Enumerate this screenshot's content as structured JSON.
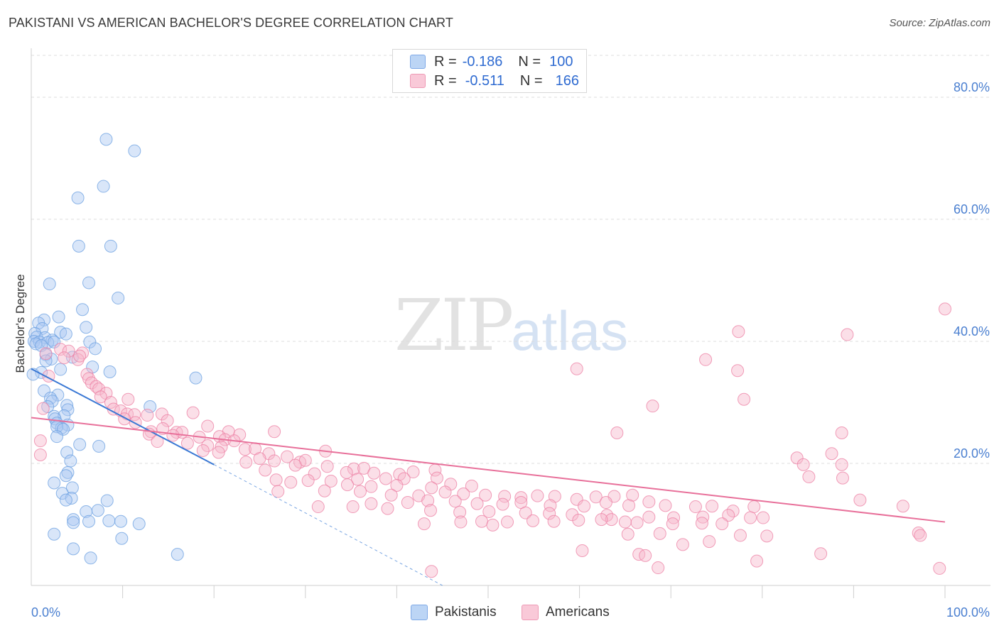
{
  "title": "PAKISTANI VS AMERICAN BACHELOR'S DEGREE CORRELATION CHART",
  "source": "Source: ZipAtlas.com",
  "watermark": {
    "zip": "ZIP",
    "atlas": "atlas"
  },
  "legend": [
    {
      "r_label": "R =",
      "r": "-0.186",
      "n_label": "N =",
      "n": "100",
      "color": "#aac8f2"
    },
    {
      "r_label": "R =",
      "r": "-0.511",
      "n_label": "N =",
      "n": "166",
      "color": "#f7b8cc"
    }
  ],
  "bottom_legend": [
    {
      "label": "Pakistanis",
      "color": "#aac8f2"
    },
    {
      "label": "Americans",
      "color": "#f7b8cc"
    }
  ],
  "chart_data": {
    "type": "scatter",
    "title": "PAKISTANI VS AMERICAN BACHELOR'S DEGREE CORRELATION CHART",
    "xlabel": "",
    "ylabel": "Bachelor's Degree",
    "xlim": [
      0,
      100
    ],
    "ylim": [
      0,
      85
    ],
    "x_tick_labels": [
      "0.0%",
      "100.0%"
    ],
    "y_ticks": [
      20,
      40,
      60,
      80
    ],
    "y_tick_labels": [
      "20.0%",
      "40.0%",
      "60.0%",
      "80.0%"
    ],
    "grid": true,
    "series": [
      {
        "name": "Pakistanis",
        "color": "#6a9fe0",
        "fill": "#aac8f2",
        "trend": {
          "x": [
            0,
            20
          ],
          "y": [
            35.5,
            19.8
          ],
          "dashed_to": [
            45,
            0
          ]
        },
        "points": [
          [
            8.2,
            73.1
          ],
          [
            11.3,
            71.2
          ],
          [
            7.9,
            65.4
          ],
          [
            5.1,
            63.5
          ],
          [
            5.2,
            55.6
          ],
          [
            8.7,
            55.6
          ],
          [
            2,
            49.4
          ],
          [
            6.3,
            49.6
          ],
          [
            9.5,
            47.1
          ],
          [
            5.6,
            45.2
          ],
          [
            3,
            44
          ],
          [
            1.4,
            43.5
          ],
          [
            0.8,
            43
          ],
          [
            6,
            42.3
          ],
          [
            1.2,
            42.1
          ],
          [
            3.2,
            41.5
          ],
          [
            0.4,
            41.3
          ],
          [
            3.8,
            41.2
          ],
          [
            0.6,
            40.7
          ],
          [
            1.5,
            40.6
          ],
          [
            2.3,
            40.2
          ],
          [
            0.3,
            40
          ],
          [
            0.9,
            39.9
          ],
          [
            1.8,
            39.8
          ],
          [
            2.5,
            39.9
          ],
          [
            6.4,
            39.9
          ],
          [
            0.5,
            39.6
          ],
          [
            1.1,
            39.3
          ],
          [
            7,
            38.8
          ],
          [
            1.6,
            37.8
          ],
          [
            4.5,
            37.4
          ],
          [
            2.2,
            37.1
          ],
          [
            1.6,
            36.8
          ],
          [
            6.7,
            35.8
          ],
          [
            3.2,
            35.4
          ],
          [
            1.1,
            34.9
          ],
          [
            8.6,
            35
          ],
          [
            0.2,
            34.6
          ],
          [
            18,
            34
          ],
          [
            1.4,
            31.9
          ],
          [
            2.9,
            31.2
          ],
          [
            2.1,
            30.7
          ],
          [
            2.3,
            30.2
          ],
          [
            3.9,
            29.5
          ],
          [
            13,
            29.3
          ],
          [
            1.8,
            29.3
          ],
          [
            4,
            28.8
          ],
          [
            2.5,
            27.7
          ],
          [
            3.6,
            27.8
          ],
          [
            2.6,
            27.3
          ],
          [
            2.8,
            26.6
          ],
          [
            4,
            26.3
          ],
          [
            3.3,
            25.8
          ],
          [
            2.8,
            26
          ],
          [
            3.5,
            25.6
          ],
          [
            2.8,
            24.4
          ],
          [
            5.3,
            23.1
          ],
          [
            7.4,
            22.8
          ],
          [
            3.9,
            21.8
          ],
          [
            4.3,
            20.4
          ],
          [
            4,
            18.5
          ],
          [
            3.8,
            18
          ],
          [
            2.5,
            16.8
          ],
          [
            4.5,
            16
          ],
          [
            3.4,
            15.1
          ],
          [
            4.4,
            14.3
          ],
          [
            3.8,
            14
          ],
          [
            8.3,
            13.9
          ],
          [
            6,
            12.1
          ],
          [
            7.3,
            12.3
          ],
          [
            4.6,
            10.8
          ],
          [
            6.3,
            10.5
          ],
          [
            8.5,
            10.6
          ],
          [
            9.8,
            10.5
          ],
          [
            11.8,
            10.1
          ],
          [
            4.6,
            10.3
          ],
          [
            2.5,
            8.4
          ],
          [
            9.9,
            7.7
          ],
          [
            4.6,
            6
          ],
          [
            16,
            5.1
          ],
          [
            6.5,
            4.5
          ]
        ]
      },
      {
        "name": "Americans",
        "color": "#ec7fa3",
        "fill": "#f7b8cc",
        "trend": {
          "x": [
            0,
            100
          ],
          "y": [
            27.5,
            10.4
          ]
        },
        "points": [
          [
            1.6,
            38
          ],
          [
            3.2,
            38.7
          ],
          [
            4.1,
            38.4
          ],
          [
            5.6,
            38.1
          ],
          [
            3.6,
            37.3
          ],
          [
            5.1,
            37
          ],
          [
            5.3,
            37.6
          ],
          [
            1.9,
            34.3
          ],
          [
            6.1,
            34.6
          ],
          [
            6.3,
            33.9
          ],
          [
            6.6,
            33.2
          ],
          [
            7.1,
            32.6
          ],
          [
            7.4,
            32.2
          ],
          [
            8.2,
            31.5
          ],
          [
            7.6,
            30.9
          ],
          [
            10.6,
            30.5
          ],
          [
            8.7,
            30
          ],
          [
            9,
            28.9
          ],
          [
            9.8,
            28.6
          ],
          [
            10.5,
            28.1
          ],
          [
            11.3,
            28
          ],
          [
            12.7,
            27.9
          ],
          [
            10.2,
            27.3
          ],
          [
            14.3,
            28.1
          ],
          [
            14.9,
            27
          ],
          [
            17.7,
            28.3
          ],
          [
            1.3,
            29
          ],
          [
            11.4,
            26.7
          ],
          [
            19.3,
            26.1
          ],
          [
            13.1,
            25.2
          ],
          [
            14.4,
            25.7
          ],
          [
            15.9,
            25.1
          ],
          [
            16.5,
            25.1
          ],
          [
            21.6,
            25.2
          ],
          [
            22.8,
            24.7
          ],
          [
            26.6,
            25.2
          ],
          [
            12.9,
            24.8
          ],
          [
            15.5,
            24.6
          ],
          [
            18.4,
            24.3
          ],
          [
            20.6,
            24.4
          ],
          [
            21.2,
            23.9
          ],
          [
            22.2,
            23.7
          ],
          [
            13.8,
            23.6
          ],
          [
            17.1,
            23.3
          ],
          [
            19.3,
            22.9
          ],
          [
            20.8,
            22.7
          ],
          [
            23.4,
            22.3
          ],
          [
            24.5,
            22.4
          ],
          [
            18.8,
            22.1
          ],
          [
            20.5,
            21.8
          ],
          [
            26,
            21.6
          ],
          [
            28,
            21.1
          ],
          [
            32.2,
            22
          ],
          [
            25,
            20.8
          ],
          [
            26.6,
            20.4
          ],
          [
            29.4,
            20.2
          ],
          [
            30,
            20.5
          ],
          [
            23.5,
            20.2
          ],
          [
            28.9,
            19.7
          ],
          [
            32.4,
            19.5
          ],
          [
            25.6,
            18.9
          ],
          [
            35.3,
            19.1
          ],
          [
            36.4,
            19.2
          ],
          [
            31,
            18.3
          ],
          [
            34.5,
            18.5
          ],
          [
            37.5,
            18.4
          ],
          [
            40.3,
            18.2
          ],
          [
            41.8,
            18.6
          ],
          [
            44.2,
            18.9
          ],
          [
            26.8,
            17.3
          ],
          [
            30.3,
            17.2
          ],
          [
            32.8,
            17.1
          ],
          [
            35.7,
            17.4
          ],
          [
            38.8,
            17.5
          ],
          [
            40.8,
            17.5
          ],
          [
            44.4,
            17.6
          ],
          [
            28.4,
            16.9
          ],
          [
            34.6,
            16.5
          ],
          [
            37.2,
            16.2
          ],
          [
            40,
            16.4
          ],
          [
            43.8,
            16
          ],
          [
            45.9,
            16.6
          ],
          [
            48.2,
            16.3
          ],
          [
            27,
            15.4
          ],
          [
            32.1,
            15.5
          ],
          [
            36,
            15.4
          ],
          [
            39.4,
            14.8
          ],
          [
            42.4,
            14.7
          ],
          [
            45.3,
            15.3
          ],
          [
            47.3,
            15
          ],
          [
            49.7,
            14.8
          ],
          [
            51.8,
            14.6
          ],
          [
            53.6,
            14.4
          ],
          [
            55.4,
            14.7
          ],
          [
            57.3,
            14.6
          ],
          [
            59.7,
            14.1
          ],
          [
            61.8,
            14.5
          ],
          [
            63.8,
            14.6
          ],
          [
            65.8,
            14.8
          ],
          [
            37.2,
            13.4
          ],
          [
            41.2,
            13.6
          ],
          [
            43.4,
            13.9
          ],
          [
            46.4,
            13.8
          ],
          [
            48.8,
            13.4
          ],
          [
            51.6,
            13.3
          ],
          [
            53.6,
            13.6
          ],
          [
            56.8,
            13.1
          ],
          [
            60.5,
            13
          ],
          [
            62.9,
            13.6
          ],
          [
            65.4,
            13.1
          ],
          [
            67.6,
            13.7
          ],
          [
            69.4,
            13.1
          ],
          [
            72.7,
            12.9
          ],
          [
            74.5,
            13
          ],
          [
            76.8,
            12.2
          ],
          [
            79.1,
            12.9
          ],
          [
            31.4,
            12.9
          ],
          [
            35.2,
            12.9
          ],
          [
            39,
            12.6
          ],
          [
            43.7,
            12.3
          ],
          [
            46.9,
            12
          ],
          [
            50.1,
            12.1
          ],
          [
            54.1,
            11.9
          ],
          [
            56.7,
            11.8
          ],
          [
            59.2,
            11.6
          ],
          [
            63,
            11.5
          ],
          [
            67.6,
            11.2
          ],
          [
            70.3,
            11.1
          ],
          [
            73.5,
            11.2
          ],
          [
            76.3,
            11.5
          ],
          [
            78.7,
            11.1
          ],
          [
            80.1,
            11.1
          ],
          [
            63.5,
            10.8
          ],
          [
            65,
            10.4
          ],
          [
            43,
            10.1
          ],
          [
            47,
            10.4
          ],
          [
            49.3,
            10.5
          ],
          [
            52.1,
            10.4
          ],
          [
            54.9,
            10.6
          ],
          [
            57.2,
            10.5
          ],
          [
            59.9,
            10.7
          ],
          [
            62.4,
            10.8
          ],
          [
            66.3,
            10.3
          ],
          [
            70.2,
            10.1
          ],
          [
            73.4,
            10.2
          ],
          [
            75.6,
            10.1
          ],
          [
            50.5,
            9.9
          ],
          [
            65.3,
            8.4
          ],
          [
            68.8,
            8.5
          ],
          [
            77.6,
            8.2
          ],
          [
            80.5,
            8.1
          ],
          [
            60.3,
            5.7
          ],
          [
            66.5,
            5.1
          ],
          [
            67.2,
            4.9
          ],
          [
            71.3,
            6.7
          ],
          [
            74.2,
            7.2
          ],
          [
            79.4,
            4
          ],
          [
            86.4,
            5.2
          ],
          [
            99.4,
            2.8
          ],
          [
            68.6,
            2.9
          ],
          [
            43.8,
            2.3
          ],
          [
            1,
            21.4
          ],
          [
            1,
            23.7
          ],
          [
            73.8,
            37
          ],
          [
            59.7,
            35.5
          ],
          [
            68,
            29.4
          ],
          [
            77.3,
            35.2
          ],
          [
            77.4,
            41.6
          ],
          [
            89.3,
            41.1
          ],
          [
            100,
            45.3
          ],
          [
            64.1,
            25
          ],
          [
            87.6,
            21.6
          ],
          [
            88.7,
            19.8
          ],
          [
            83.8,
            20.9
          ],
          [
            84.5,
            19.8
          ],
          [
            85.1,
            17.8
          ],
          [
            88.8,
            17.6
          ],
          [
            90.7,
            14
          ],
          [
            95.4,
            13
          ],
          [
            78,
            30.5
          ],
          [
            88.7,
            25
          ],
          [
            97.1,
            8.6
          ],
          [
            97.3,
            8.2
          ]
        ]
      }
    ]
  }
}
